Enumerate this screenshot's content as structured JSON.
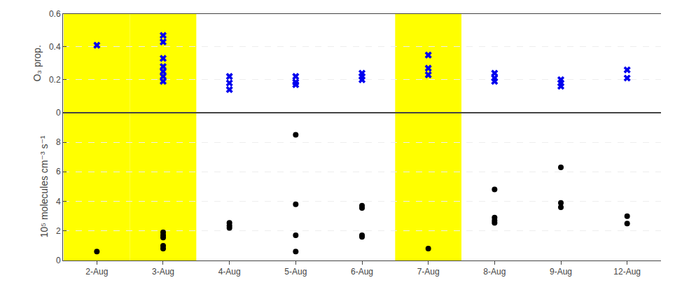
{
  "chart_data": [
    {
      "type": "scatter",
      "categories": [
        "2-Aug",
        "3-Aug",
        "4-Aug",
        "5-Aug",
        "6-Aug",
        "7-Aug",
        "8-Aug",
        "9-Aug",
        "12-Aug"
      ],
      "values": [
        [
          0.41
        ],
        [
          0.47,
          0.43,
          0.33,
          0.28,
          0.25,
          0.22,
          0.19
        ],
        [
          0.22,
          0.18,
          0.14
        ],
        [
          0.22,
          0.185,
          0.17
        ],
        [
          0.24,
          0.22,
          0.2
        ],
        [
          0.35,
          0.27,
          0.23
        ],
        [
          0.24,
          0.21,
          0.19
        ],
        [
          0.2,
          0.18,
          0.16
        ],
        [
          0.26,
          0.21
        ]
      ],
      "color": "#0000EE",
      "marker": "x",
      "ylabel": "O₃ prop.",
      "ylim": [
        0,
        0.6
      ],
      "yticks": [
        0,
        0.2,
        0.4,
        0.6
      ],
      "y2lim": [
        0,
        0.6
      ],
      "y2ticks": [
        0,
        0.2,
        0.4,
        0.6
      ],
      "grid": true,
      "tick_labels": "y",
      "highlighted": [
        "2-Aug",
        "3-Aug",
        "7-Aug"
      ],
      "highlight_color": "#FFFF00"
    },
    {
      "type": "scatter",
      "categories": [
        "2-Aug",
        "3-Aug",
        "4-Aug",
        "5-Aug",
        "6-Aug",
        "7-Aug",
        "8-Aug",
        "9-Aug",
        "12-Aug"
      ],
      "values": [
        [
          0.6
        ],
        [
          1.9,
          1.7,
          1.55,
          1.0,
          0.8
        ],
        [
          2.55,
          2.35,
          2.2
        ],
        [
          8.5,
          3.8,
          1.7,
          0.6
        ],
        [
          3.7,
          3.55,
          1.7,
          1.6
        ],
        [
          0.8
        ],
        [
          4.8,
          2.9,
          2.7,
          2.55
        ],
        [
          6.3,
          3.9,
          3.6
        ],
        [
          3.0,
          2.5
        ]
      ],
      "color": "#000000",
      "marker": "circle",
      "ylabel": "10⁵ molecules cm⁻³ s⁻¹",
      "ylim": [
        0,
        10
      ],
      "yticks": [
        0,
        2,
        4,
        6,
        8
      ],
      "y2lim": [
        0,
        10
      ],
      "y2ticks": [
        0,
        2,
        4,
        6,
        8
      ],
      "grid": true,
      "highlighted": [
        "2-Aug",
        "3-Aug",
        "7-Aug"
      ],
      "highlight_color": "#FFFF00"
    }
  ]
}
